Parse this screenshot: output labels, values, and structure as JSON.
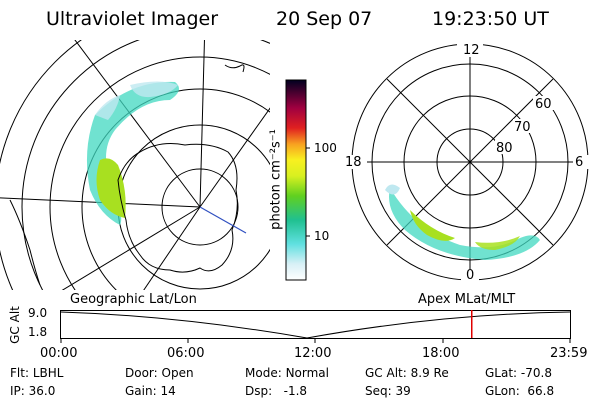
{
  "header": {
    "instrument": "Ultraviolet Imager",
    "date": "20 Sep 07",
    "time": "19:23:50 UT"
  },
  "colorbar": {
    "unit_label": "photon cm⁻²s⁻¹",
    "ticks": [
      "100",
      "10"
    ]
  },
  "polar_plot": {
    "mlt_labels": [
      "12",
      "18",
      "6",
      "0"
    ],
    "mlat_labels": [
      "60",
      "70",
      "80"
    ]
  },
  "timeline": {
    "left_label": "Geographic Lat/Lon",
    "right_label": "Apex  MLat/MLT",
    "axis_title": "GC Alt",
    "y_ticks": [
      "9.0",
      "1.8"
    ],
    "x_ticks": [
      "00:00",
      "06:00",
      "12:00",
      "18:00",
      "23:59"
    ],
    "current_time_fraction": 0.807
  },
  "info": {
    "row1": [
      {
        "key": "Flt:",
        "value": "LBHL"
      },
      {
        "key": "Door:",
        "value": "Open"
      },
      {
        "key": "Mode:",
        "value": "Normal"
      },
      {
        "key": "GC Alt:",
        "value": "8.9 Re"
      },
      {
        "key": "GLat:",
        "value": "-70.8"
      }
    ],
    "row2": [
      {
        "key": "IP:",
        "value": "36.0"
      },
      {
        "key": "Gain:",
        "value": "14"
      },
      {
        "key": "Dsp:",
        "value": "-1.8"
      },
      {
        "key": "Seq:",
        "value": "39"
      },
      {
        "key": "GLon:",
        "value": "66.8"
      }
    ]
  },
  "colors": {
    "aurora_low": "#bfe8f0",
    "aurora_mid": "#40d8c0",
    "aurora_high": "#a8e020",
    "marker": "#e00000",
    "track": "#3050c0"
  }
}
